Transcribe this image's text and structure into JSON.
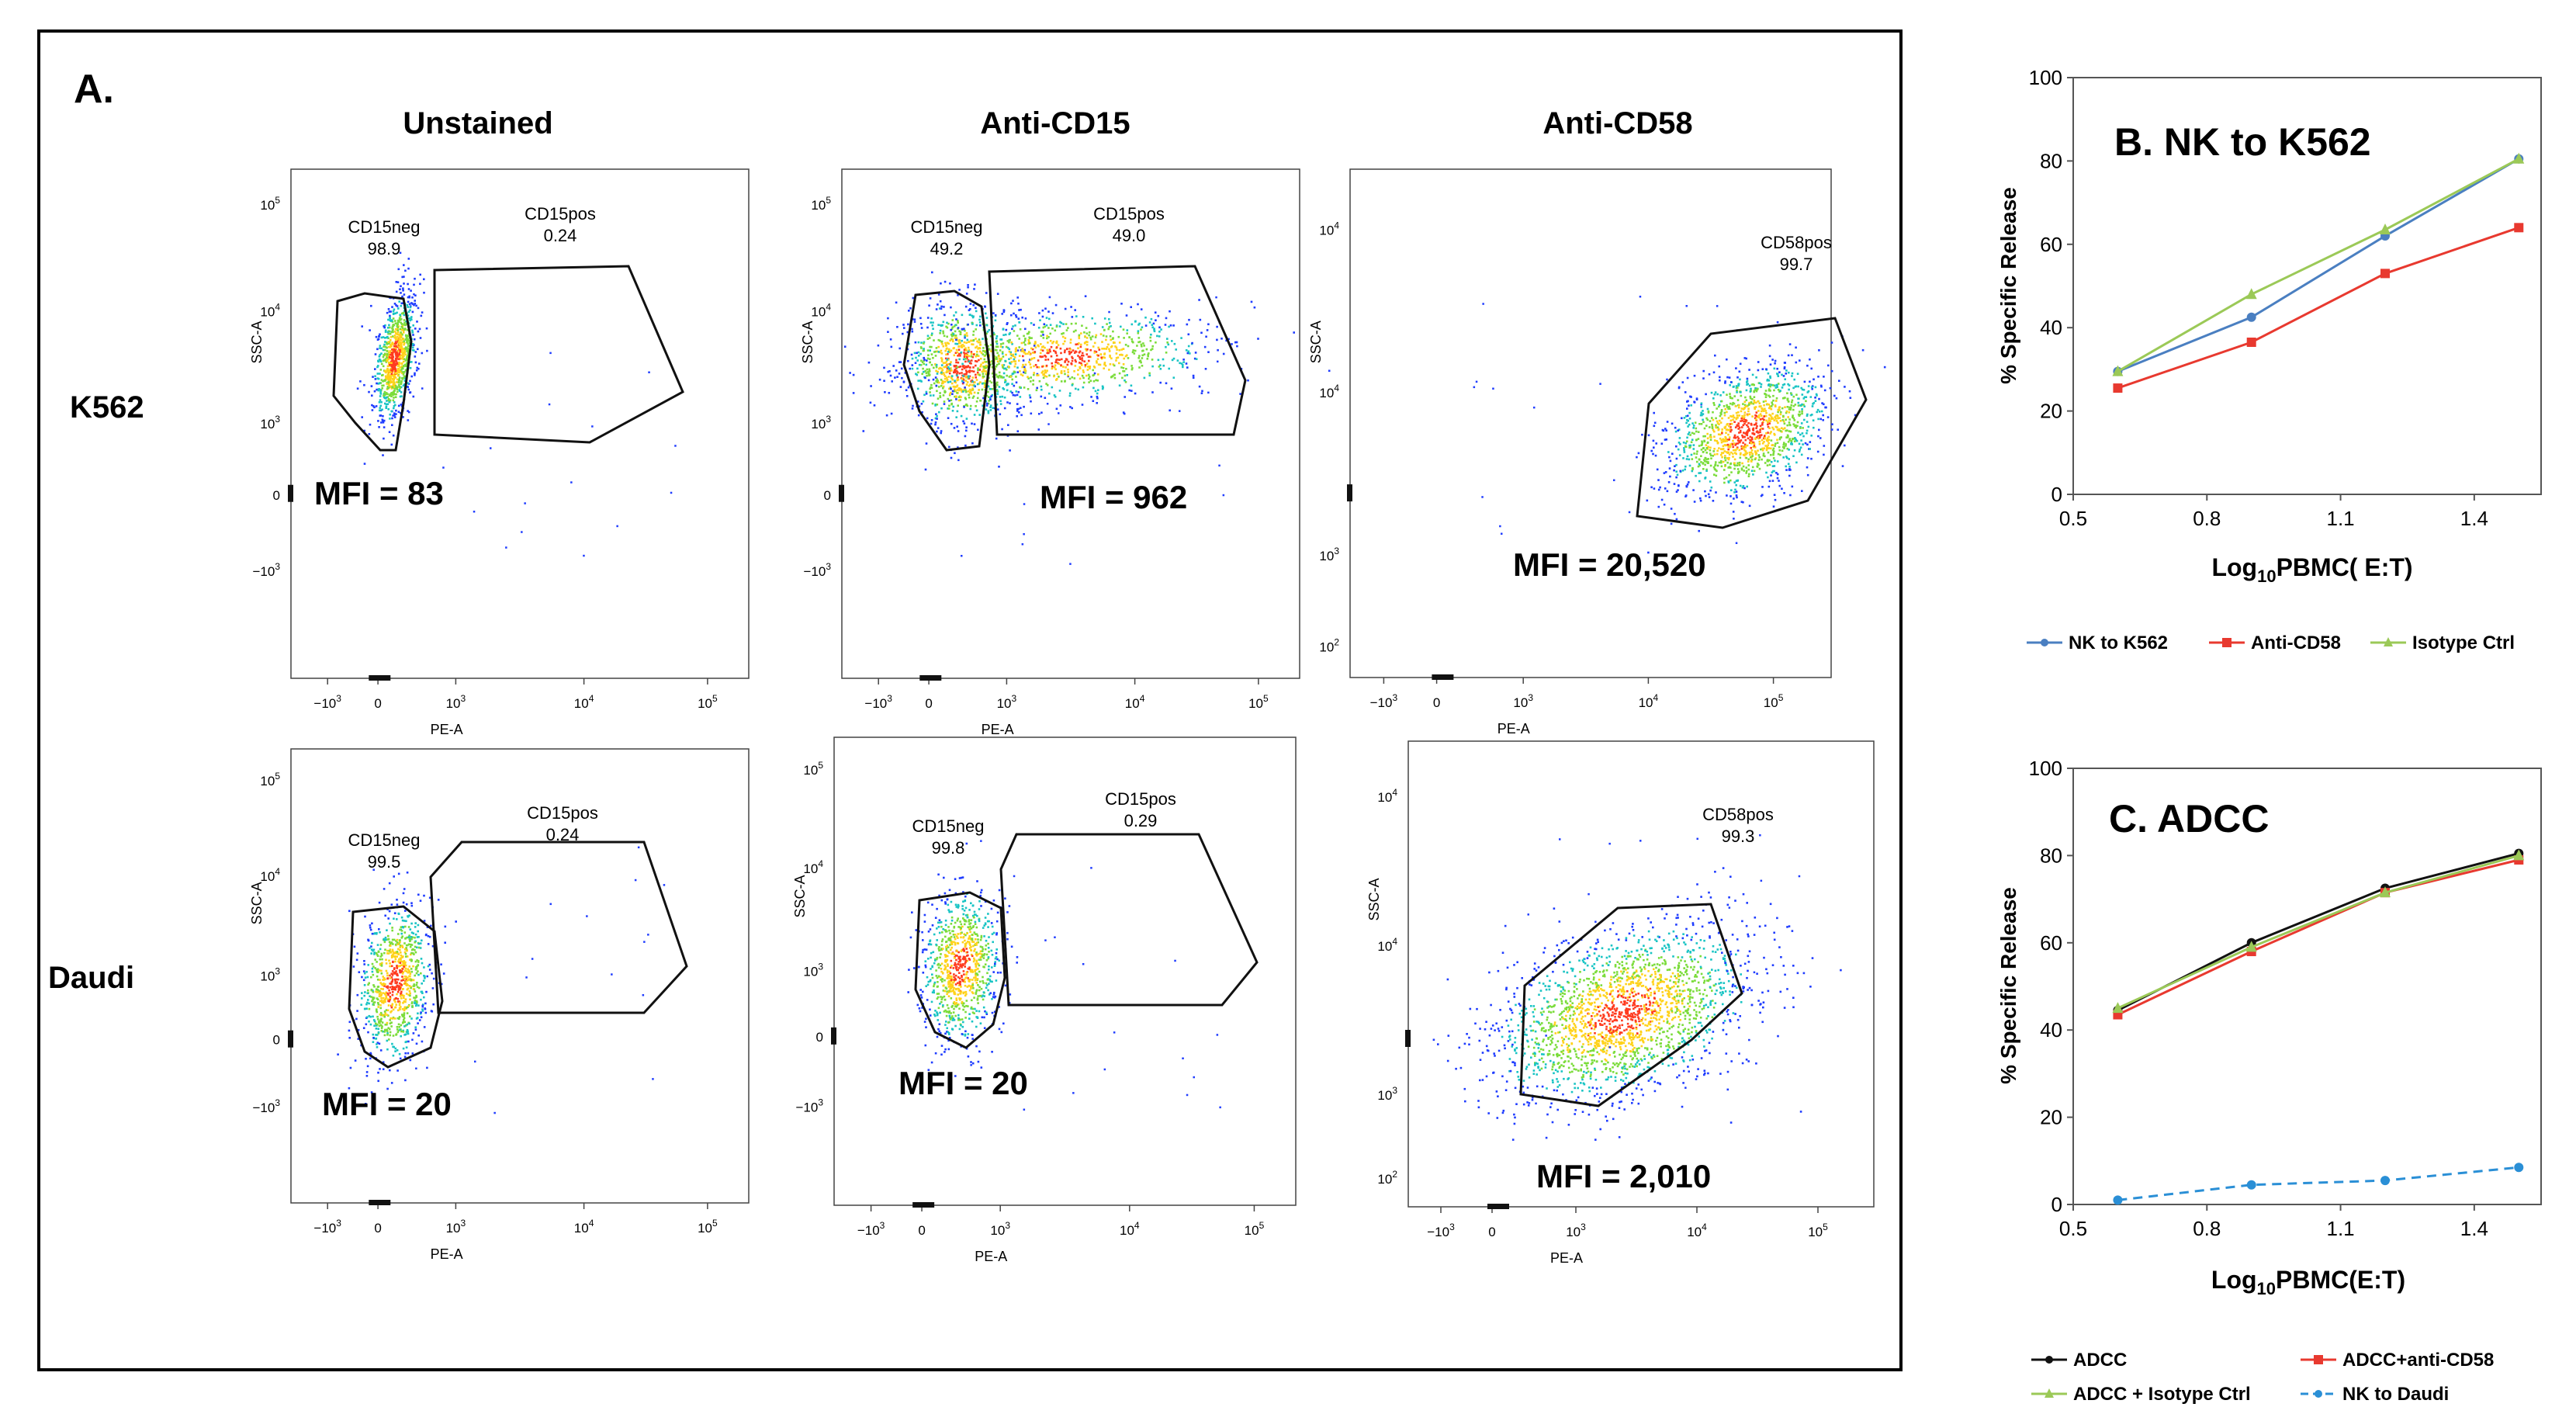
{
  "panel_a": {
    "label": "A.",
    "columns": [
      "Unstained",
      "Anti-CD15",
      "Anti-CD58"
    ],
    "rows": [
      "K562",
      "Daudi"
    ],
    "x_axis_label": "PE-A",
    "y_axis_label": "SSC-A",
    "tick_labels": {
      "neg3": "−10",
      "zero": "0",
      "e3": "10",
      "e4": "10",
      "e5": "10",
      "e2": "10",
      "exp3": "3",
      "exp4": "4",
      "exp5": "5",
      "exp2": "2"
    },
    "plots": [
      {
        "row": "K562",
        "column": "Unstained",
        "gates": [
          {
            "name": "CD15neg",
            "value": "98.9"
          },
          {
            "name": "CD15pos",
            "value": "0.24"
          }
        ],
        "mfi": "MFI = 83"
      },
      {
        "row": "K562",
        "column": "Anti-CD15",
        "gates": [
          {
            "name": "CD15neg",
            "value": "49.2"
          },
          {
            "name": "CD15pos",
            "value": "49.0"
          }
        ],
        "mfi": "MFI = 962"
      },
      {
        "row": "K562",
        "column": "Anti-CD58",
        "gates": [
          {
            "name": "CD58pos",
            "value": "99.7"
          }
        ],
        "mfi": "MFI = 20,520"
      },
      {
        "row": "Daudi",
        "column": "Unstained",
        "gates": [
          {
            "name": "CD15neg",
            "value": "99.5"
          },
          {
            "name": "CD15pos",
            "value": "0.24"
          }
        ],
        "mfi": "MFI = 20"
      },
      {
        "row": "Daudi",
        "column": "Anti-CD15",
        "gates": [
          {
            "name": "CD15neg",
            "value": "99.8"
          },
          {
            "name": "CD15pos",
            "value": "0.29"
          }
        ],
        "mfi": "MFI = 20"
      },
      {
        "row": "Daudi",
        "column": "Anti-CD58",
        "gates": [
          {
            "name": "CD58pos",
            "value": "99.3"
          }
        ],
        "mfi": "MFI = 2,010"
      }
    ]
  },
  "colors": {
    "blue": "#4a7fc1",
    "red": "#e8392f",
    "green": "#9bc957",
    "black": "#111111",
    "dashed_blue": "#2a8fd6",
    "density_low": "#1f3cff",
    "density_mid": "#19c4c4",
    "density_high": "#ffd21a",
    "density_peak": "#ff3b1f"
  },
  "chart_data": [
    {
      "id": "B",
      "type": "line",
      "title": "B.  NK to K562",
      "xlabel_main": "Log",
      "xlabel_sub": "10",
      "xlabel_tail": "PBMC( E:T)",
      "ylabel": "% Specific Release",
      "xlim": [
        0.5,
        1.55
      ],
      "ylim": [
        0,
        100
      ],
      "xticks": [
        0.5,
        0.8,
        1.1,
        1.4
      ],
      "xtick_labels": [
        "0.5",
        "0.8",
        "1.1",
        "1.4"
      ],
      "yticks": [
        0,
        20,
        40,
        60,
        80,
        100
      ],
      "ytick_labels": [
        "0",
        "20",
        "40",
        "60",
        "80",
        "100"
      ],
      "x": [
        0.6,
        0.9,
        1.2,
        1.5
      ],
      "series": [
        {
          "name": "NK to K562",
          "values": [
            29.5,
            42.5,
            62,
            80.5
          ],
          "color": "#4a7fc1",
          "marker": "circle",
          "dash": false
        },
        {
          "name": "Anti-CD58",
          "values": [
            25.5,
            36.5,
            53,
            64
          ],
          "color": "#e8392f",
          "marker": "square",
          "dash": false
        },
        {
          "name": "Isotype Ctrl",
          "values": [
            29.5,
            48,
            63.5,
            80.5
          ],
          "color": "#9bc957",
          "marker": "triangle",
          "dash": false
        }
      ],
      "legend_placement": "bottom"
    },
    {
      "id": "C",
      "type": "line",
      "title": "C. ADCC",
      "xlabel_main": "Log",
      "xlabel_sub": "10",
      "xlabel_tail": "PBMC(E:T)",
      "ylabel": "% Specific Release",
      "xlim": [
        0.5,
        1.55
      ],
      "ylim": [
        0,
        100
      ],
      "xticks": [
        0.5,
        0.8,
        1.1,
        1.4
      ],
      "xtick_labels": [
        "0.5",
        "0.8",
        "1.1",
        "1.4"
      ],
      "yticks": [
        0,
        20,
        40,
        60,
        80,
        100
      ],
      "ytick_labels": [
        "0",
        "20",
        "40",
        "60",
        "80",
        "100"
      ],
      "x": [
        0.6,
        0.9,
        1.2,
        1.5
      ],
      "series": [
        {
          "name": "ADCC",
          "values": [
            44.5,
            60,
            72.5,
            80.5
          ],
          "color": "#111111",
          "marker": "circle",
          "dash": false
        },
        {
          "name": "ADCC+anti-CD58",
          "values": [
            43.5,
            58,
            71.5,
            79
          ],
          "color": "#e8392f",
          "marker": "square",
          "dash": false
        },
        {
          "name": "ADCC + Isotype Ctrl",
          "values": [
            45,
            59,
            71.5,
            80
          ],
          "color": "#9bc957",
          "marker": "triangle",
          "dash": false
        },
        {
          "name": "NK to Daudi",
          "values": [
            1,
            4.5,
            5.5,
            8.5
          ],
          "color": "#2a8fd6",
          "marker": "circle",
          "dash": true
        }
      ],
      "legend_placement": "bottom"
    }
  ]
}
